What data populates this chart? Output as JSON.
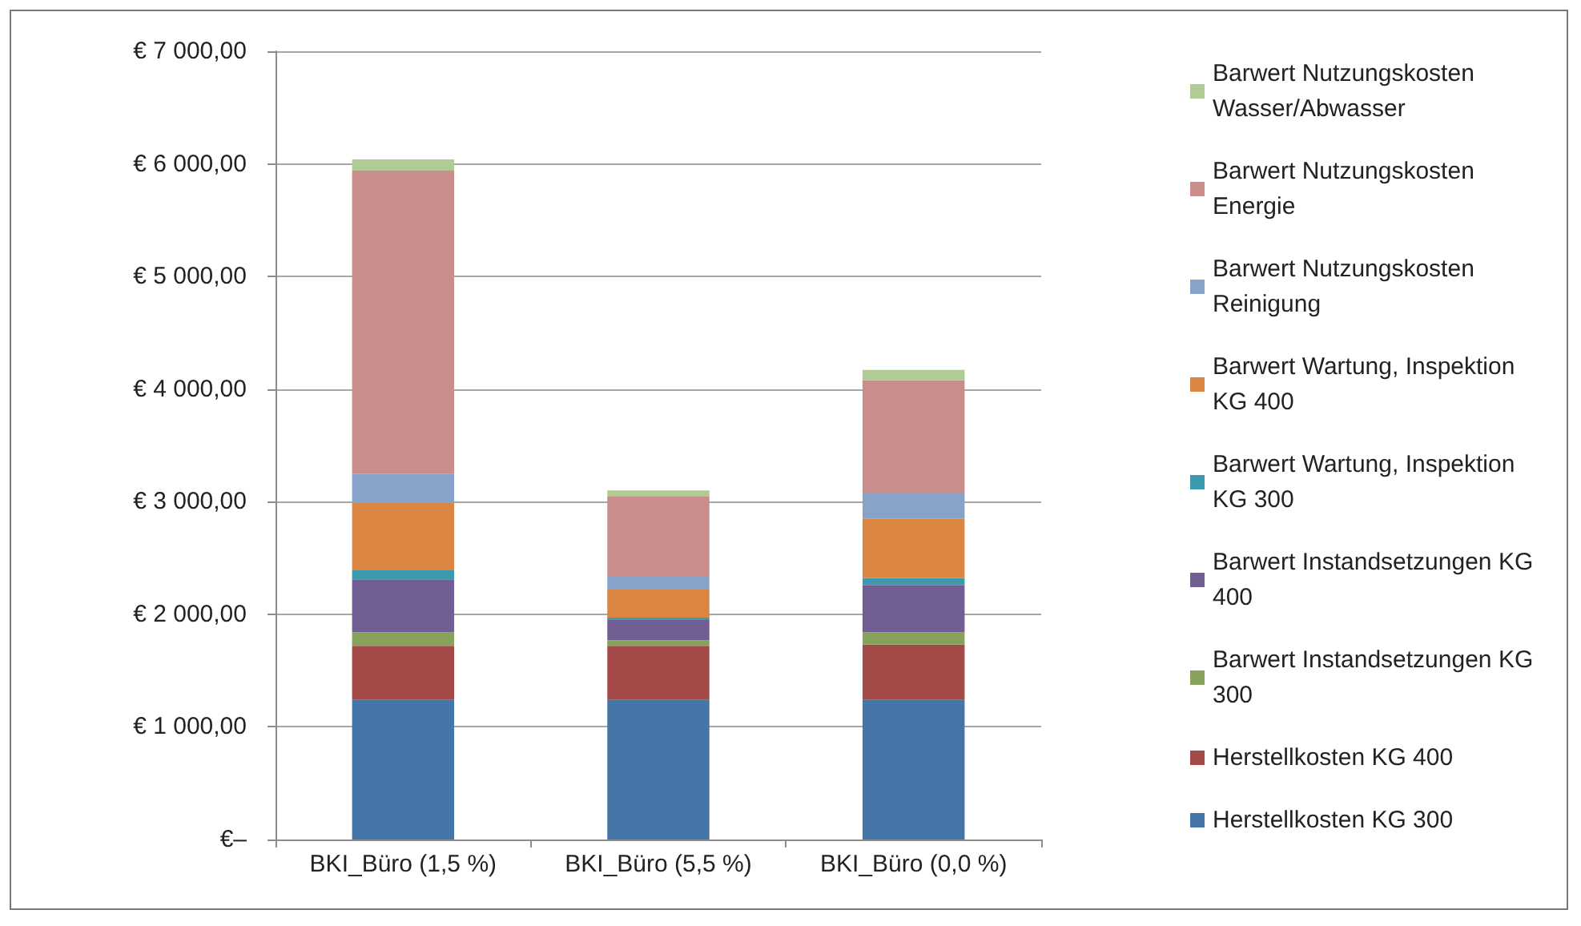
{
  "chart_data": {
    "type": "bar",
    "stacked": true,
    "categories": [
      "BKI_Büro (1,5 %)",
      "BKI_Büro (5,5 %)",
      "BKI_Büro (0,0 %)"
    ],
    "series": [
      {
        "name": "Herstellkosten KG 300",
        "color": "#4675a8",
        "values": [
          1240,
          1240,
          1240
        ]
      },
      {
        "name": "Herstellkosten KG 400",
        "color": "#a34a48",
        "values": [
          480,
          480,
          490
        ]
      },
      {
        "name": "Barwert Instandsetzungen KG 300",
        "color": "#87a25b",
        "values": [
          120,
          50,
          110
        ]
      },
      {
        "name": "Barwert Instandsetzungen KG 400",
        "color": "#715e93",
        "values": [
          470,
          180,
          420
        ]
      },
      {
        "name": "Barwert Wartung, Inspektion KG 300",
        "color": "#3c99ae",
        "values": [
          80,
          20,
          60
        ]
      },
      {
        "name": "Barwert Wartung, Inspektion KG 400",
        "color": "#da8542",
        "values": [
          600,
          250,
          530
        ]
      },
      {
        "name": "Barwert Nutzungskosten Reinigung",
        "color": "#88a3c9",
        "values": [
          260,
          120,
          230
        ]
      },
      {
        "name": "Barwert Nutzungskosten Energie",
        "color": "#c98d8b",
        "values": [
          2690,
          710,
          1000
        ]
      },
      {
        "name": "Barwert Nutzungskosten Wasser/Abwasser",
        "color": "#b0cb94",
        "values": [
          100,
          50,
          90
        ]
      }
    ],
    "ylim": [
      0,
      7000
    ],
    "yticks": [
      {
        "value": 0,
        "label": "€–"
      },
      {
        "value": 1000,
        "label": "€ 1 000,00"
      },
      {
        "value": 2000,
        "label": "€ 2 000,00"
      },
      {
        "value": 3000,
        "label": "€ 3 000,00"
      },
      {
        "value": 4000,
        "label": "€ 4 000,00"
      },
      {
        "value": 5000,
        "label": "€ 5 000,00"
      },
      {
        "value": 6000,
        "label": "€ 6 000,00"
      },
      {
        "value": 7000,
        "label": "€ 7 000,00"
      }
    ],
    "grid": "y",
    "legend": "right"
  }
}
